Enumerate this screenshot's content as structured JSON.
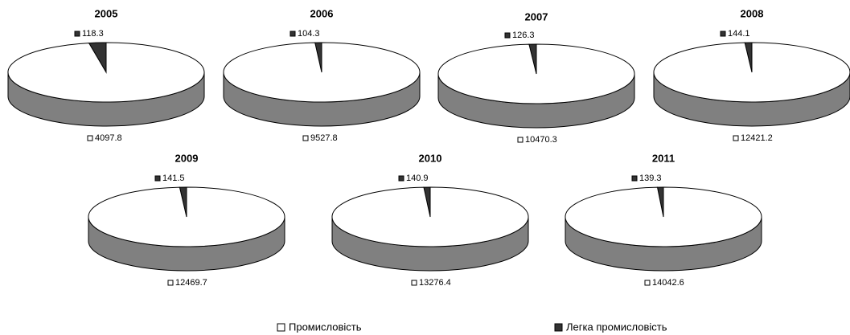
{
  "chart_data": [
    {
      "type": "pie",
      "title": "2005",
      "categories": [
        "Промисловість",
        "Легка промисловість"
      ],
      "values": [
        4097.8,
        118.3
      ],
      "colors": [
        "#ffffff",
        "#333333"
      ]
    },
    {
      "type": "pie",
      "title": "2006",
      "categories": [
        "Промисловість",
        "Легка промисловість"
      ],
      "values": [
        9527.8,
        104.3
      ],
      "colors": [
        "#ffffff",
        "#333333"
      ]
    },
    {
      "type": "pie",
      "title": "2007",
      "categories": [
        "Промисловість",
        "Легка промисловість"
      ],
      "values": [
        10470.3,
        126.3
      ],
      "colors": [
        "#ffffff",
        "#333333"
      ]
    },
    {
      "type": "pie",
      "title": "2008",
      "categories": [
        "Промисловість",
        "Легка промисловість"
      ],
      "values": [
        12421.2,
        144.1
      ],
      "colors": [
        "#ffffff",
        "#333333"
      ]
    },
    {
      "type": "pie",
      "title": "2009",
      "categories": [
        "Промисловість",
        "Легка промисловість"
      ],
      "values": [
        12469.7,
        141.5
      ],
      "colors": [
        "#ffffff",
        "#333333"
      ]
    },
    {
      "type": "pie",
      "title": "2010",
      "categories": [
        "Промисловість",
        "Легка промисловість"
      ],
      "values": [
        13276.4,
        140.9
      ],
      "colors": [
        "#ffffff",
        "#333333"
      ]
    },
    {
      "type": "pie",
      "title": "2011",
      "categories": [
        "Промисловість",
        "Легка промисловість"
      ],
      "values": [
        14042.6,
        139.3
      ],
      "colors": [
        "#ffffff",
        "#333333"
      ]
    }
  ]
}
